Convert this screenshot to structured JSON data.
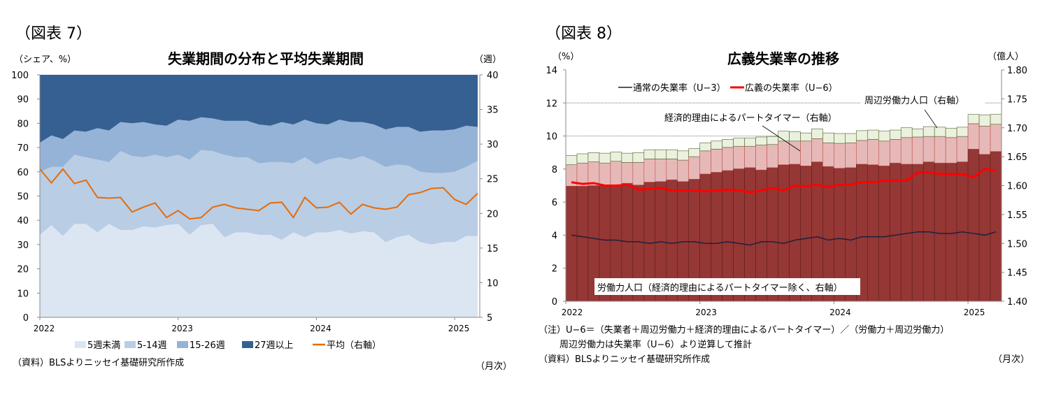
{
  "left": {
    "figure_label": "（図表 7）",
    "source": "（資料）BLSよりニッセイ基礎研究所作成",
    "freq": "（月次）",
    "chart_data": {
      "type": "area",
      "title": "失業期間の分布と平均失業期間",
      "ylabel": "（シェア、%）",
      "y2label": "（週）",
      "ylim": [
        0,
        100
      ],
      "y2lim": [
        5,
        40
      ],
      "yticks": [
        "0",
        "10",
        "20",
        "30",
        "40",
        "50",
        "60",
        "70",
        "80",
        "90",
        "100"
      ],
      "y2ticks": [
        "5",
        "10",
        "15",
        "20",
        "25",
        "30",
        "35",
        "40"
      ],
      "xticks": [
        "2022",
        "2023",
        "2024",
        "2025"
      ],
      "x_start": "2022-01",
      "x_end": "2025-03",
      "stacked": true,
      "legend_position": "bottom",
      "series": [
        {
          "name": "5週未満",
          "color": "#dce6f2",
          "values": [
            34,
            38,
            33.5,
            38.5,
            38.5,
            35,
            38.5,
            36,
            36,
            37.5,
            37,
            38,
            38.5,
            34,
            38,
            38.5,
            33,
            35,
            35,
            34,
            34,
            32,
            35,
            33,
            35,
            35,
            36,
            34.5,
            35.5,
            35,
            31,
            33,
            34,
            31,
            30,
            31,
            31,
            33.5,
            33.5
          ]
        },
        {
          "name": "5-14週",
          "color": "#b9cde5",
          "values": [
            26,
            24,
            28.5,
            28.5,
            27.5,
            30,
            25.5,
            32.5,
            30.5,
            28.5,
            30,
            28,
            28.5,
            31,
            31,
            30,
            34,
            31,
            31,
            29.5,
            30,
            32,
            28.5,
            33,
            28,
            30,
            30,
            30.5,
            31,
            29.5,
            31,
            30,
            28.5,
            29,
            29.5,
            28.5,
            29,
            28.5,
            31
          ]
        },
        {
          "name": "15-26週",
          "color": "#95b3d7",
          "values": [
            12,
            13,
            11.5,
            10,
            10.5,
            13,
            13,
            12,
            13.5,
            14.5,
            12.5,
            13,
            14.5,
            16,
            13.5,
            13.5,
            14,
            15,
            15,
            16,
            15,
            16.5,
            16,
            15.5,
            17,
            14.5,
            15.5,
            15.5,
            14,
            15,
            15.5,
            15.5,
            16,
            16.5,
            17.5,
            17.5,
            17.5,
            17,
            14
          ]
        },
        {
          "name": "27週以上",
          "color": "#366092",
          "values": [
            28,
            25,
            26.5,
            23,
            23.5,
            22,
            23,
            19.5,
            20,
            19.5,
            20.5,
            21,
            18.5,
            19,
            17.5,
            18,
            19,
            19,
            19,
            20.5,
            21,
            19.5,
            20.5,
            18.5,
            20,
            20.5,
            18.5,
            19.5,
            19.5,
            20.5,
            22.5,
            21.5,
            21.5,
            23.5,
            23,
            23,
            22.5,
            21,
            21.5
          ]
        }
      ],
      "line": {
        "name": "平均（右軸）",
        "axis": "right",
        "color": "#e46c0a",
        "values": [
          26.4,
          24.4,
          26.4,
          24.3,
          24.8,
          22.3,
          22.2,
          22.3,
          20.2,
          20.9,
          21.5,
          19.4,
          20.4,
          19.2,
          19.4,
          20.9,
          21.3,
          20.8,
          20.6,
          20.4,
          21.5,
          21.6,
          19.4,
          22.3,
          20.8,
          20.9,
          21.6,
          19.9,
          21.3,
          20.8,
          20.6,
          20.9,
          22.7,
          23.0,
          23.6,
          23.7,
          22.0,
          21.3,
          22.9
        ]
      }
    }
  },
  "right": {
    "figure_label": "（図表 8）",
    "note1": "（注）U−6＝（失業者＋周辺労働力＋経済的理由によるパートタイマー）／（労働力＋周辺労働力）",
    "note2": "周辺労働力は失業率（U−6）より逆算して推計",
    "source": "（資料）BLSよりニッセイ基礎研究所作成",
    "freq": "（月次）",
    "chart_data": {
      "type": "bar",
      "title": "広義失業率の推移",
      "ylabel": "（%）",
      "y2label": "（億人）",
      "ylim": [
        0,
        14
      ],
      "y2lim": [
        1.4,
        1.8
      ],
      "yticks": [
        "0",
        "2",
        "4",
        "6",
        "8",
        "10",
        "12",
        "14"
      ],
      "y2ticks": [
        "1.40",
        "1.45",
        "1.50",
        "1.55",
        "1.60",
        "1.65",
        "1.70",
        "1.75",
        "1.80"
      ],
      "xticks": [
        "2022",
        "2023",
        "2024",
        "2025"
      ],
      "x_start": "2022-01",
      "x_end": "2025-03",
      "grid_lines_at": [
        10,
        12
      ],
      "bars_stacked": true,
      "bar_series": [
        {
          "name": "労働力人口（経済的理由によるパートタイマー除く、右軸）",
          "axis": "right",
          "color": "#953735",
          "values": [
            1.599,
            1.599,
            1.6,
            1.6,
            1.601,
            1.604,
            1.601,
            1.606,
            1.607,
            1.61,
            1.607,
            1.611,
            1.62,
            1.623,
            1.626,
            1.629,
            1.631,
            1.627,
            1.631,
            1.636,
            1.637,
            1.634,
            1.641,
            1.633,
            1.63,
            1.631,
            1.637,
            1.636,
            1.634,
            1.639,
            1.637,
            1.637,
            1.641,
            1.639,
            1.639,
            1.641,
            1.663,
            1.654,
            1.659
          ]
        },
        {
          "name": "経済的理由によるパートタイマー（右軸）",
          "axis": "right",
          "color": "#e6b9b8",
          "values": [
            0.037,
            0.04,
            0.041,
            0.039,
            0.041,
            0.036,
            0.039,
            0.04,
            0.039,
            0.036,
            0.037,
            0.039,
            0.04,
            0.04,
            0.04,
            0.039,
            0.037,
            0.043,
            0.04,
            0.041,
            0.04,
            0.043,
            0.04,
            0.041,
            0.043,
            0.043,
            0.041,
            0.044,
            0.043,
            0.041,
            0.046,
            0.047,
            0.044,
            0.046,
            0.044,
            0.044,
            0.044,
            0.049,
            0.047
          ]
        },
        {
          "name": "周辺労働力人口（右軸）",
          "axis": "right",
          "color": "#ebf1de",
          "values": [
            0.016,
            0.016,
            0.016,
            0.017,
            0.016,
            0.016,
            0.017,
            0.016,
            0.016,
            0.016,
            0.016,
            0.014,
            0.014,
            0.014,
            0.014,
            0.014,
            0.014,
            0.014,
            0.014,
            0.017,
            0.016,
            0.014,
            0.017,
            0.017,
            0.017,
            0.016,
            0.017,
            0.016,
            0.017,
            0.016,
            0.017,
            0.014,
            0.017,
            0.016,
            0.016,
            0.016,
            0.016,
            0.019,
            0.017
          ]
        }
      ],
      "lines": [
        {
          "name": "通常の失業率（U−3）",
          "axis": "left",
          "color": "#1f1f3d",
          "values": [
            4.0,
            3.9,
            3.8,
            3.7,
            3.7,
            3.6,
            3.6,
            3.5,
            3.6,
            3.5,
            3.6,
            3.6,
            3.5,
            3.5,
            3.6,
            3.5,
            3.4,
            3.6,
            3.6,
            3.5,
            3.7,
            3.8,
            3.9,
            3.7,
            3.8,
            3.7,
            3.9,
            3.9,
            3.9,
            4.0,
            4.1,
            4.2,
            4.2,
            4.1,
            4.1,
            4.2,
            4.1,
            4.0,
            4.2
          ]
        },
        {
          "name": "広義の失業率（U−6）",
          "axis": "left",
          "color": "#ff0000",
          "values": [
            7.2,
            7.1,
            7.15,
            7.0,
            7.0,
            7.05,
            6.75,
            6.8,
            6.85,
            6.7,
            6.7,
            6.7,
            6.65,
            6.7,
            6.75,
            6.7,
            6.6,
            6.7,
            6.85,
            6.7,
            7.0,
            6.95,
            7.05,
            6.9,
            7.05,
            7.05,
            7.2,
            7.2,
            7.3,
            7.3,
            7.3,
            7.8,
            7.8,
            7.7,
            7.7,
            7.7,
            7.5,
            8.0,
            7.9
          ]
        }
      ]
    }
  }
}
